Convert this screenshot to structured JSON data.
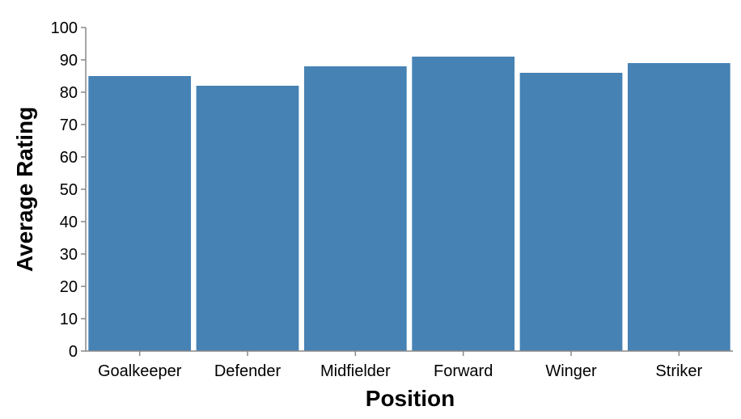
{
  "chart_data": {
    "type": "bar",
    "title": "",
    "xlabel": "Position",
    "ylabel": "Average Rating",
    "categories": [
      "Goalkeeper",
      "Defender",
      "Midfielder",
      "Forward",
      "Winger",
      "Striker"
    ],
    "values": [
      85,
      82,
      88,
      91,
      86,
      89
    ],
    "ylim": [
      0,
      100
    ],
    "yticks": [
      0,
      10,
      20,
      30,
      40,
      50,
      60,
      70,
      80,
      90,
      100
    ],
    "grid": false,
    "bar_color": "#4682b4",
    "axis_color": "#888888"
  }
}
